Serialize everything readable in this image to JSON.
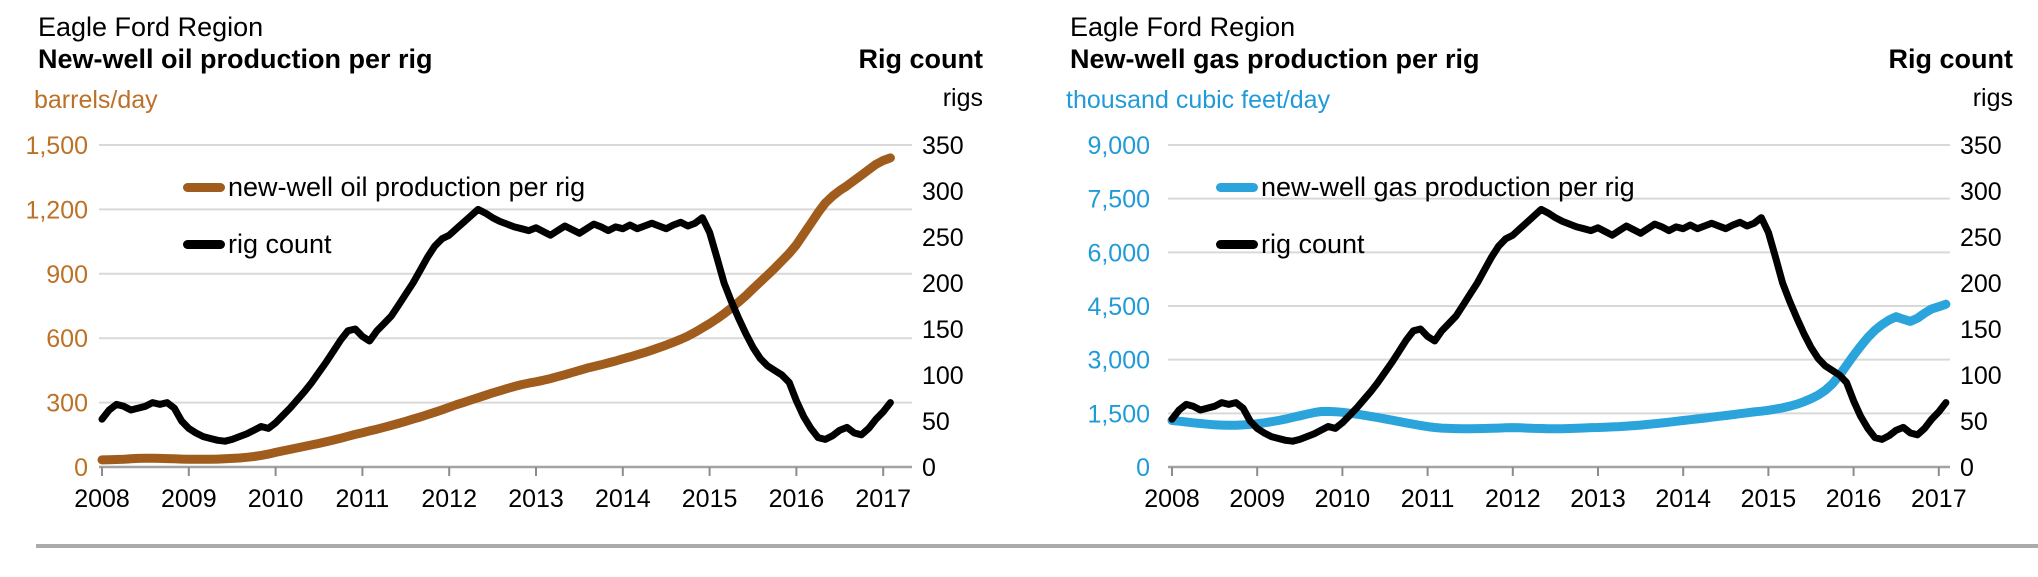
{
  "page": {
    "background": "#ffffff",
    "divider_color": "#ababab"
  },
  "chart_data": [
    {
      "type": "line",
      "region": "Eagle Ford Region",
      "title": "New-well oil production per rig",
      "x_axis": {
        "tick_labels": [
          "2008",
          "2009",
          "2010",
          "2011",
          "2012",
          "2013",
          "2014",
          "2015",
          "2016",
          "2017"
        ],
        "points_start_year": 2008,
        "points_per_year": 12
      },
      "left_axis": {
        "unit": "barrels/day",
        "color": "#bc7127",
        "max": 1500,
        "step": 300,
        "tick_labels": [
          "0",
          "300",
          "600",
          "900",
          "1,200",
          "1,500"
        ]
      },
      "right_axis": {
        "title": "Rig count",
        "unit": "rigs",
        "color": "#000000",
        "max": 350,
        "step": 50,
        "tick_labels": [
          "0",
          "50",
          "100",
          "150",
          "200",
          "250",
          "300",
          "350"
        ]
      },
      "grid": "horizontal",
      "legend_position": "top-left-inside",
      "legend": [
        {
          "label": "new-well oil production per rig",
          "color": "#a05c1c"
        },
        {
          "label": "rig count",
          "color": "#000000"
        }
      ],
      "series": [
        {
          "name": "new-well oil production per rig",
          "axis": "left",
          "color": "#a05c1c",
          "width": 9,
          "values": [
            33,
            34,
            35,
            36,
            38,
            40,
            41,
            41,
            40,
            39,
            38,
            37,
            36,
            36,
            36,
            36,
            37,
            38,
            40,
            42,
            45,
            49,
            54,
            60,
            68,
            75,
            82,
            89,
            96,
            103,
            110,
            118,
            126,
            134,
            143,
            152,
            160,
            168,
            176,
            185,
            194,
            203,
            213,
            223,
            233,
            244,
            255,
            266,
            278,
            290,
            301,
            312,
            323,
            334,
            345,
            355,
            365,
            375,
            384,
            391,
            397,
            404,
            412,
            421,
            430,
            440,
            450,
            460,
            468,
            476,
            485,
            494,
            504,
            513,
            523,
            533,
            544,
            556,
            568,
            581,
            595,
            610,
            628,
            648,
            668,
            690,
            714,
            740,
            768,
            798,
            830,
            862,
            894,
            926,
            960,
            995,
            1035,
            1085,
            1135,
            1185,
            1230,
            1262,
            1288,
            1310,
            1335,
            1360,
            1385,
            1410,
            1428,
            1440
          ]
        },
        {
          "name": "rig count",
          "axis": "right",
          "color": "#000000",
          "width": 7,
          "values": [
            52,
            62,
            68,
            66,
            62,
            64,
            66,
            70,
            68,
            70,
            64,
            50,
            42,
            37,
            33,
            31,
            29,
            28,
            30,
            33,
            36,
            40,
            44,
            42,
            48,
            56,
            64,
            73,
            82,
            92,
            103,
            114,
            126,
            138,
            148,
            150,
            142,
            137,
            148,
            156,
            164,
            176,
            188,
            200,
            214,
            228,
            240,
            248,
            252,
            259,
            266,
            273,
            280,
            276,
            271,
            267,
            264,
            261,
            259,
            257,
            260,
            256,
            252,
            257,
            262,
            258,
            254,
            259,
            264,
            261,
            257,
            261,
            259,
            263,
            259,
            262,
            265,
            262,
            259,
            263,
            266,
            262,
            265,
            271,
            255,
            228,
            200,
            180,
            162,
            145,
            130,
            118,
            110,
            105,
            100,
            92,
            72,
            55,
            42,
            32,
            30,
            34,
            40,
            43,
            37,
            35,
            42,
            52,
            60,
            70
          ]
        }
      ]
    },
    {
      "type": "line",
      "region": "Eagle Ford Region",
      "title": "New-well gas production per rig",
      "x_axis": {
        "tick_labels": [
          "2008",
          "2009",
          "2010",
          "2011",
          "2012",
          "2013",
          "2014",
          "2015",
          "2016",
          "2017"
        ],
        "points_start_year": 2008,
        "points_per_year": 12
      },
      "left_axis": {
        "unit": "thousand cubic feet/day",
        "color": "#219bd8",
        "max": 9000,
        "step": 1500,
        "tick_labels": [
          "0",
          "1,500",
          "3,000",
          "4,500",
          "6,000",
          "7,500",
          "9,000"
        ]
      },
      "right_axis": {
        "title": "Rig count",
        "unit": "rigs",
        "color": "#000000",
        "max": 350,
        "step": 50,
        "tick_labels": [
          "0",
          "50",
          "100",
          "150",
          "200",
          "250",
          "300",
          "350"
        ]
      },
      "grid": "horizontal",
      "legend_position": "top-left-inside",
      "legend": [
        {
          "label": "new-well gas production per rig",
          "color": "#2aa4db"
        },
        {
          "label": "rig count",
          "color": "#000000"
        }
      ],
      "series": [
        {
          "name": "new-well gas production per rig",
          "axis": "left",
          "color": "#2aa4db",
          "width": 9,
          "values": [
            1300,
            1280,
            1258,
            1236,
            1215,
            1196,
            1180,
            1170,
            1165,
            1168,
            1178,
            1192,
            1210,
            1235,
            1265,
            1300,
            1340,
            1385,
            1430,
            1478,
            1520,
            1552,
            1555,
            1545,
            1530,
            1505,
            1478,
            1448,
            1415,
            1380,
            1345,
            1308,
            1270,
            1232,
            1195,
            1160,
            1130,
            1105,
            1088,
            1078,
            1072,
            1070,
            1070,
            1072,
            1076,
            1082,
            1088,
            1095,
            1100,
            1095,
            1088,
            1080,
            1075,
            1070,
            1068,
            1070,
            1075,
            1082,
            1090,
            1100,
            1105,
            1112,
            1120,
            1130,
            1142,
            1156,
            1172,
            1190,
            1210,
            1231,
            1253,
            1276,
            1300,
            1322,
            1345,
            1368,
            1392,
            1416,
            1440,
            1465,
            1490,
            1515,
            1540,
            1560,
            1585,
            1618,
            1655,
            1700,
            1755,
            1825,
            1910,
            2010,
            2140,
            2320,
            2560,
            2840,
            3120,
            3380,
            3620,
            3820,
            3980,
            4110,
            4200,
            4130,
            4070,
            4160,
            4300,
            4420,
            4480,
            4550
          ]
        },
        {
          "name": "rig count",
          "axis": "right",
          "color": "#000000",
          "width": 7,
          "values": [
            52,
            62,
            68,
            66,
            62,
            64,
            66,
            70,
            68,
            70,
            64,
            50,
            42,
            37,
            33,
            31,
            29,
            28,
            30,
            33,
            36,
            40,
            44,
            42,
            48,
            56,
            64,
            73,
            82,
            92,
            103,
            114,
            126,
            138,
            148,
            150,
            142,
            137,
            148,
            156,
            164,
            176,
            188,
            200,
            214,
            228,
            240,
            248,
            252,
            259,
            266,
            273,
            280,
            276,
            271,
            267,
            264,
            261,
            259,
            257,
            260,
            256,
            252,
            257,
            262,
            258,
            254,
            259,
            264,
            261,
            257,
            261,
            259,
            263,
            259,
            262,
            265,
            262,
            259,
            263,
            266,
            262,
            265,
            271,
            255,
            228,
            200,
            180,
            162,
            145,
            130,
            118,
            110,
            105,
            100,
            92,
            72,
            55,
            42,
            32,
            30,
            34,
            40,
            43,
            37,
            35,
            42,
            52,
            60,
            70
          ]
        }
      ]
    }
  ]
}
